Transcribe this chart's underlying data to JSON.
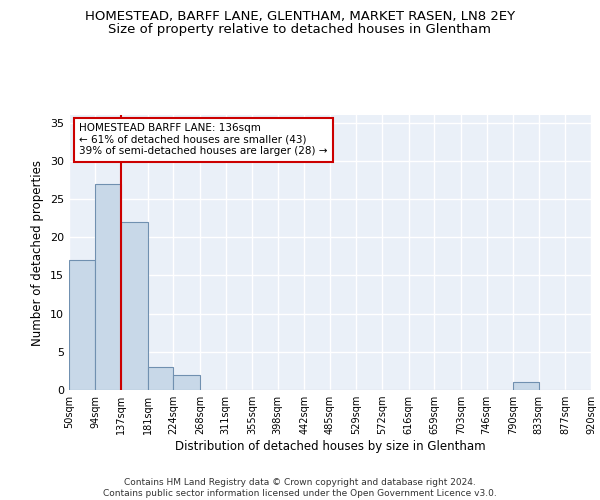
{
  "title": "HOMESTEAD, BARFF LANE, GLENTHAM, MARKET RASEN, LN8 2EY",
  "subtitle": "Size of property relative to detached houses in Glentham",
  "xlabel": "Distribution of detached houses by size in Glentham",
  "ylabel": "Number of detached properties",
  "bin_edges": [
    50,
    94,
    137,
    181,
    224,
    268,
    311,
    355,
    398,
    442,
    485,
    529,
    572,
    616,
    659,
    703,
    746,
    790,
    833,
    877,
    920
  ],
  "counts": [
    17,
    27,
    22,
    3,
    2,
    0,
    0,
    0,
    0,
    0,
    0,
    0,
    0,
    0,
    0,
    0,
    0,
    1,
    0,
    0
  ],
  "bar_color": "#c8d8e8",
  "bar_edge_color": "#7090b0",
  "bar_linewidth": 0.8,
  "vline_x": 136,
  "vline_color": "#cc0000",
  "vline_linewidth": 1.5,
  "annotation_text": "HOMESTEAD BARFF LANE: 136sqm\n← 61% of detached houses are smaller (43)\n39% of semi-detached houses are larger (28) →",
  "annotation_box_color": "white",
  "annotation_box_edge_color": "#cc0000",
  "annotation_fontsize": 7.5,
  "ylim": [
    0,
    36
  ],
  "yticks": [
    0,
    5,
    10,
    15,
    20,
    25,
    30,
    35
  ],
  "background_color": "#eaf0f8",
  "grid_color": "white",
  "title_fontsize": 9.5,
  "subtitle_fontsize": 9.5,
  "xlabel_fontsize": 8.5,
  "ylabel_fontsize": 8.5,
  "tick_labels": [
    "50sqm",
    "94sqm",
    "137sqm",
    "181sqm",
    "224sqm",
    "268sqm",
    "311sqm",
    "355sqm",
    "398sqm",
    "442sqm",
    "485sqm",
    "529sqm",
    "572sqm",
    "616sqm",
    "659sqm",
    "703sqm",
    "746sqm",
    "790sqm",
    "833sqm",
    "877sqm",
    "920sqm"
  ],
  "footer_text": "Contains HM Land Registry data © Crown copyright and database right 2024.\nContains public sector information licensed under the Open Government Licence v3.0."
}
